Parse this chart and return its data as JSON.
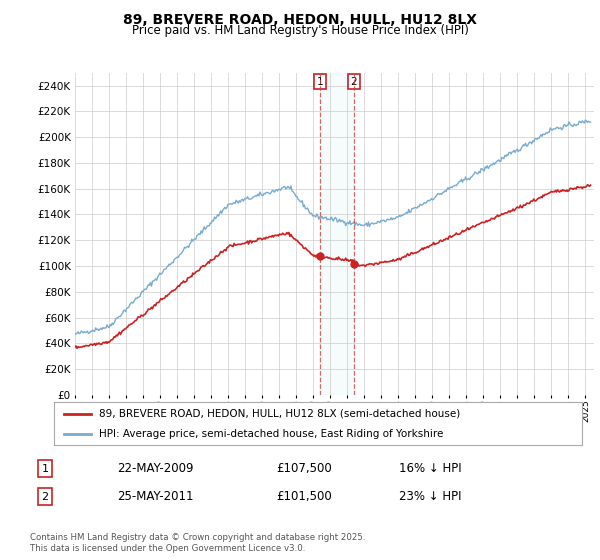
{
  "title": "89, BREVERE ROAD, HEDON, HULL, HU12 8LX",
  "subtitle": "Price paid vs. HM Land Registry's House Price Index (HPI)",
  "ylim": [
    0,
    250000
  ],
  "xlim_start": 1995,
  "xlim_end": 2025.5,
  "background_color": "#ffffff",
  "plot_bg_color": "#ffffff",
  "grid_color": "#cccccc",
  "hpi_color": "#7aabcf",
  "price_color": "#cc2222",
  "purchase1_date": "22-MAY-2009",
  "purchase1_price": "£107,500",
  "purchase1_pct": "16% ↓ HPI",
  "purchase2_date": "25-MAY-2011",
  "purchase2_price": "£101,500",
  "purchase2_pct": "23% ↓ HPI",
  "legend_line1": "89, BREVERE ROAD, HEDON, HULL, HU12 8LX (semi-detached house)",
  "legend_line2": "HPI: Average price, semi-detached house, East Riding of Yorkshire",
  "footnote": "Contains HM Land Registry data © Crown copyright and database right 2025.\nThis data is licensed under the Open Government Licence v3.0.",
  "marker1_x": 2009.39,
  "marker2_x": 2011.39,
  "marker1_y": 107500,
  "marker2_y": 101500,
  "vline1_x": 2009.39,
  "vline2_x": 2011.39,
  "title_fontsize": 10,
  "subtitle_fontsize": 8.5
}
